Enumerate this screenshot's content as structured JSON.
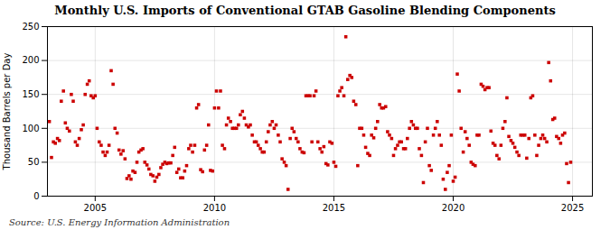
{
  "chart_data": {
    "type": "scatter",
    "title": "Monthly U.S. Imports of Conventional GTAB Gasoline Blending Components",
    "ylabel": "Thousand Barrels per Day",
    "annotations": [
      "Source: U.S. Energy Information Administration"
    ],
    "color": "#CC0000",
    "marker": "square",
    "grid": true,
    "xlim": [
      2003.0,
      2025.83
    ],
    "ylim": [
      0,
      250
    ],
    "xticks": [
      2005,
      2010,
      2015,
      2020,
      2025
    ],
    "yticks": [
      0,
      50,
      100,
      150,
      200,
      250
    ],
    "x": [
      2003.08,
      2003.17,
      2003.25,
      2003.33,
      2003.42,
      2003.5,
      2003.58,
      2003.67,
      2003.75,
      2003.83,
      2003.92,
      2004.0,
      2004.08,
      2004.17,
      2004.25,
      2004.33,
      2004.42,
      2004.5,
      2004.58,
      2004.67,
      2004.75,
      2004.83,
      2004.92,
      2005.0,
      2005.08,
      2005.17,
      2005.25,
      2005.33,
      2005.42,
      2005.5,
      2005.58,
      2005.67,
      2005.75,
      2005.83,
      2005.92,
      2006.0,
      2006.08,
      2006.17,
      2006.25,
      2006.33,
      2006.42,
      2006.5,
      2006.58,
      2006.67,
      2006.75,
      2006.83,
      2006.92,
      2007.0,
      2007.08,
      2007.17,
      2007.25,
      2007.33,
      2007.42,
      2007.5,
      2007.58,
      2007.67,
      2007.75,
      2007.83,
      2007.92,
      2008.0,
      2008.08,
      2008.17,
      2008.25,
      2008.33,
      2008.42,
      2008.5,
      2008.58,
      2008.67,
      2008.75,
      2008.83,
      2008.92,
      2009.0,
      2009.08,
      2009.17,
      2009.25,
      2009.33,
      2009.42,
      2009.5,
      2009.58,
      2009.67,
      2009.75,
      2009.83,
      2009.92,
      2010.0,
      2010.08,
      2010.17,
      2010.25,
      2010.33,
      2010.42,
      2010.5,
      2010.58,
      2010.67,
      2010.75,
      2010.83,
      2010.92,
      2011.0,
      2011.08,
      2011.17,
      2011.25,
      2011.33,
      2011.42,
      2011.5,
      2011.58,
      2011.67,
      2011.75,
      2011.83,
      2011.92,
      2012.0,
      2012.08,
      2012.17,
      2012.25,
      2012.33,
      2012.42,
      2012.5,
      2012.58,
      2012.67,
      2012.75,
      2012.83,
      2012.92,
      2013.0,
      2013.08,
      2013.17,
      2013.25,
      2013.33,
      2013.42,
      2013.5,
      2013.58,
      2013.67,
      2013.75,
      2013.83,
      2013.92,
      2014.0,
      2014.08,
      2014.17,
      2014.25,
      2014.33,
      2014.42,
      2014.5,
      2014.58,
      2014.67,
      2014.75,
      2014.83,
      2014.92,
      2015.0,
      2015.08,
      2015.17,
      2015.25,
      2015.33,
      2015.42,
      2015.5,
      2015.58,
      2015.67,
      2015.75,
      2015.83,
      2015.92,
      2016.0,
      2016.08,
      2016.17,
      2016.25,
      2016.33,
      2016.42,
      2016.5,
      2016.58,
      2016.67,
      2016.75,
      2016.83,
      2016.92,
      2017.0,
      2017.08,
      2017.17,
      2017.25,
      2017.33,
      2017.42,
      2017.5,
      2017.58,
      2017.67,
      2017.75,
      2017.83,
      2017.92,
      2018.0,
      2018.08,
      2018.17,
      2018.25,
      2018.33,
      2018.42,
      2018.5,
      2018.58,
      2018.67,
      2018.75,
      2018.83,
      2018.92,
      2019.0,
      2019.08,
      2019.17,
      2019.25,
      2019.33,
      2019.42,
      2019.5,
      2019.58,
      2019.67,
      2019.75,
      2019.83,
      2019.92,
      2020.0,
      2020.08,
      2020.17,
      2020.25,
      2020.33,
      2020.42,
      2020.5,
      2020.58,
      2020.67,
      2020.75,
      2020.83,
      2020.92,
      2021.0,
      2021.08,
      2021.17,
      2021.25,
      2021.33,
      2021.42,
      2021.5,
      2021.58,
      2021.67,
      2021.75,
      2021.83,
      2021.92,
      2022.0,
      2022.08,
      2022.17,
      2022.25,
      2022.33,
      2022.42,
      2022.5,
      2022.58,
      2022.67,
      2022.75,
      2022.83,
      2022.92,
      2023.0,
      2023.08,
      2023.17,
      2023.25,
      2023.33,
      2023.42,
      2023.5,
      2023.58,
      2023.67,
      2023.75,
      2023.83,
      2023.92,
      2024.0,
      2024.08,
      2024.17,
      2024.25,
      2024.33,
      2024.42,
      2024.5,
      2024.58,
      2024.67,
      2024.75,
      2024.83,
      2024.92
    ],
    "values": [
      110,
      57,
      80,
      78,
      85,
      82,
      140,
      155,
      108,
      100,
      96,
      150,
      140,
      80,
      75,
      85,
      98,
      105,
      150,
      165,
      170,
      148,
      145,
      148,
      100,
      80,
      75,
      65,
      60,
      65,
      75,
      185,
      165,
      100,
      93,
      68,
      62,
      67,
      55,
      26,
      30,
      25,
      37,
      35,
      50,
      65,
      68,
      70,
      50,
      46,
      40,
      32,
      30,
      22,
      28,
      32,
      42,
      47,
      50,
      48,
      49,
      49,
      60,
      72,
      35,
      40,
      27,
      27,
      37,
      45,
      70,
      75,
      65,
      75,
      130,
      135,
      39,
      36,
      68,
      75,
      105,
      38,
      37,
      130,
      155,
      130,
      155,
      75,
      70,
      105,
      115,
      110,
      100,
      100,
      100,
      105,
      120,
      125,
      115,
      105,
      102,
      105,
      90,
      80,
      80,
      75,
      70,
      65,
      65,
      80,
      95,
      105,
      110,
      100,
      105,
      90,
      80,
      55,
      50,
      45,
      10,
      85,
      100,
      95,
      85,
      80,
      70,
      65,
      64,
      148,
      148,
      148,
      80,
      148,
      155,
      80,
      70,
      65,
      73,
      48,
      46,
      80,
      78,
      50,
      44,
      148,
      155,
      160,
      148,
      235,
      172,
      178,
      175,
      140,
      135,
      45,
      100,
      100,
      90,
      72,
      63,
      60,
      90,
      86,
      100,
      110,
      135,
      130,
      130,
      132,
      95,
      90,
      85,
      60,
      70,
      75,
      80,
      80,
      70,
      70,
      85,
      100,
      110,
      105,
      100,
      100,
      70,
      60,
      20,
      80,
      100,
      45,
      38,
      90,
      100,
      110,
      90,
      75,
      25,
      10,
      35,
      45,
      90,
      22,
      28,
      180,
      155,
      100,
      65,
      95,
      85,
      75,
      50,
      47,
      45,
      90,
      90,
      165,
      162,
      157,
      160,
      160,
      96,
      78,
      75,
      60,
      55,
      75,
      100,
      110,
      145,
      88,
      82,
      78,
      72,
      65,
      60,
      90,
      90,
      90,
      56,
      85,
      145,
      148,
      90,
      60,
      75,
      85,
      90,
      85,
      80,
      197,
      170,
      113,
      115,
      88,
      85,
      78,
      90,
      93,
      48,
      20,
      50
    ]
  }
}
